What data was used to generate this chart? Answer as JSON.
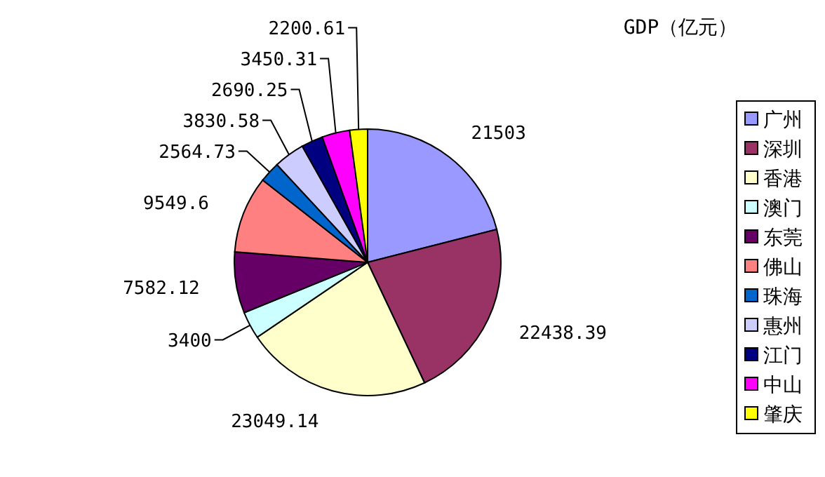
{
  "chart_data": {
    "type": "pie",
    "title": "GDP（亿元）",
    "categories": [
      "广州",
      "深圳",
      "香港",
      "澳门",
      "东莞",
      "佛山",
      "珠海",
      "惠州",
      "江门",
      "中山",
      "肇庆"
    ],
    "values": [
      21503,
      22438.39,
      23049.14,
      3400,
      7582.12,
      9549.6,
      2564.73,
      3830.58,
      2690.25,
      3450.31,
      2200.61
    ],
    "colors": [
      "#9999ff",
      "#993366",
      "#ffffcc",
      "#ccffff",
      "#660066",
      "#ff8080",
      "#0066cc",
      "#ccccff",
      "#000080",
      "#ff00ff",
      "#ffff00"
    ],
    "data_labels": true,
    "legend": "right"
  }
}
